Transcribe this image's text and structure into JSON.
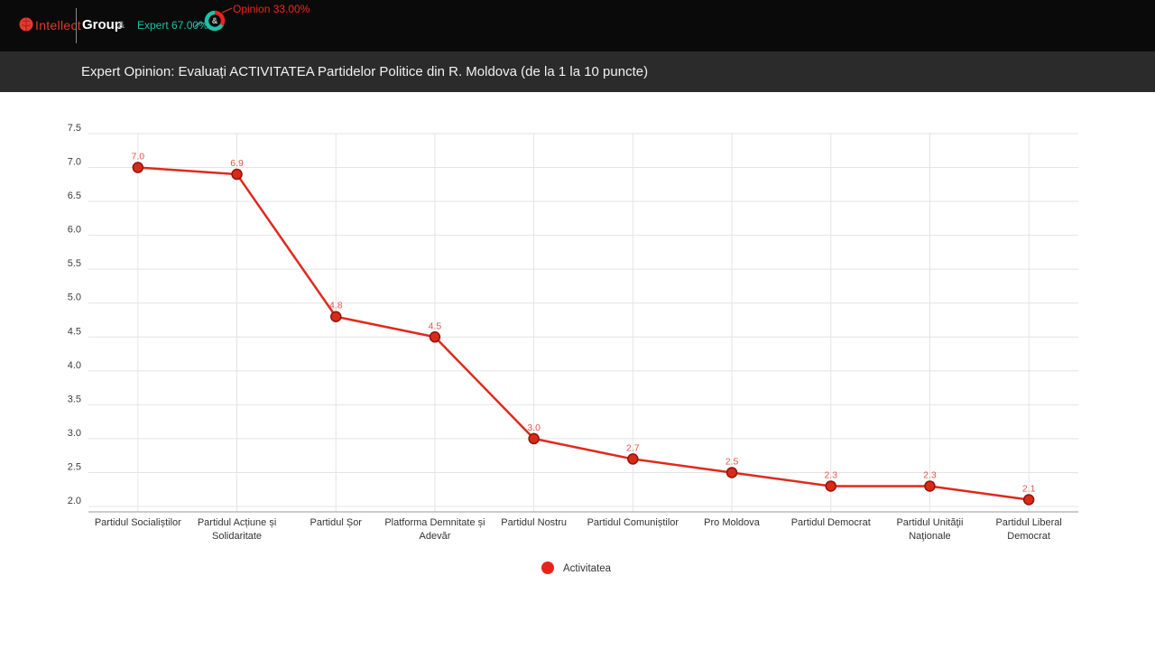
{
  "header": {
    "brand_red": "Intellect",
    "brand_white": "Group",
    "ampersand": "&",
    "expert_label": "Expert 67.00%",
    "opinion_label": "Opinion 33.00%",
    "donut": {
      "center_text": "&",
      "expert_pct": 67,
      "opinion_pct": 33,
      "expert_color": "#1fc0a7",
      "opinion_color": "#e8241c"
    },
    "logo_color": "#e0382c"
  },
  "titlebar": {
    "title": "Expert Opinion: Evaluați ACTIVITATEA Partidelor Politice din R. Moldova (de la 1 la 10 puncte)"
  },
  "chart_data": {
    "type": "line",
    "title": "",
    "categories": [
      "Partidul Socialiștilor",
      "Partidul Acțiune și Solidaritate",
      "Partidul Șor",
      "Platforma Demnitate și Adevăr",
      "Partidul Nostru",
      "Partidul Comuniștilor",
      "Pro Moldova",
      "Partidul Democrat",
      "Partidul Unităţii Naţionale",
      "Partidul Liberal Democrat"
    ],
    "categories_wrapped": [
      [
        "Partidul Socialiștilor"
      ],
      [
        "Partidul Acțiune și",
        "Solidaritate"
      ],
      [
        "Partidul Șor"
      ],
      [
        "Platforma Demnitate și",
        "Adevăr"
      ],
      [
        "Partidul Nostru"
      ],
      [
        "Partidul Comuniștilor"
      ],
      [
        "Pro Moldova"
      ],
      [
        "Partidul Democrat"
      ],
      [
        "Partidul Unităţii",
        "Naţionale"
      ],
      [
        "Partidul Liberal",
        "Democrat"
      ]
    ],
    "series": [
      {
        "name": "Activitatea",
        "values": [
          7.0,
          6.9,
          4.8,
          4.5,
          3.0,
          2.7,
          2.5,
          2.3,
          2.3,
          2.1
        ],
        "line_color": "#df2a1c",
        "point_fill": "#d92a18",
        "point_stroke": "#8e150c",
        "label_color": "#e0564a"
      }
    ],
    "ylim": [
      2.0,
      7.5
    ],
    "ytick_step": 0.5,
    "xlabel": "",
    "ylabel": "",
    "grid": true,
    "grid_color": "#e4e4e4",
    "axis_line_color": "#9a9a9a",
    "tick_label_color": "#3c3c3c",
    "legend": {
      "label": "Activitatea",
      "dot_color": "#e8231a",
      "position": "bottom"
    }
  }
}
